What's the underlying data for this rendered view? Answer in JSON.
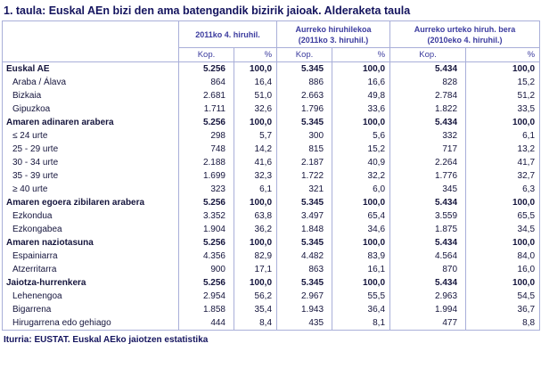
{
  "title": "1. taula: Euskal AEn bizi den ama batengandik bizirik jaioak. Alderaketa taula",
  "footer": "Iturria: EUSTAT. Euskal AEko jaiotzen estatistika",
  "colors": {
    "title_text": "#14145e",
    "header_text": "#3b3b9e",
    "body_text": "#14143c",
    "border": "#a9afd9",
    "background": "#ffffff"
  },
  "chart_data": {
    "type": "table",
    "title": "1. taula: Euskal AEn bizi den ama batengandik bizirik jaioak. Alderaketa taula",
    "source": "Iturria: EUSTAT. Euskal AEko jaiotzen estatistika",
    "column_groups": [
      {
        "lines": [
          "2011ko 4. hiruhil."
        ]
      },
      {
        "lines": [
          "Aurreko hiruhilekoa",
          "(2011ko 3. hiruhil.)"
        ]
      },
      {
        "lines": [
          "Aurreko urteko hiruh. bera",
          "(2010eko 4. hiruhil.)"
        ]
      }
    ],
    "subcolumns": [
      "Kop.",
      "%"
    ],
    "rows": [
      {
        "label": "Euskal AE",
        "section": true,
        "values": [
          "5.256",
          "100,0",
          "5.345",
          "100,0",
          "5.434",
          "100,0"
        ]
      },
      {
        "label": "Araba / Álava",
        "section": false,
        "values": [
          "864",
          "16,4",
          "886",
          "16,6",
          "828",
          "15,2"
        ]
      },
      {
        "label": "Bizkaia",
        "section": false,
        "values": [
          "2.681",
          "51,0",
          "2.663",
          "49,8",
          "2.784",
          "51,2"
        ]
      },
      {
        "label": "Gipuzkoa",
        "section": false,
        "values": [
          "1.711",
          "32,6",
          "1.796",
          "33,6",
          "1.822",
          "33,5"
        ]
      },
      {
        "label": "Amaren adinaren arabera",
        "section": true,
        "values": [
          "5.256",
          "100,0",
          "5.345",
          "100,0",
          "5.434",
          "100,0"
        ]
      },
      {
        "label": "≤ 24 urte",
        "section": false,
        "values": [
          "298",
          "5,7",
          "300",
          "5,6",
          "332",
          "6,1"
        ]
      },
      {
        "label": "25 - 29 urte",
        "section": false,
        "values": [
          "748",
          "14,2",
          "815",
          "15,2",
          "717",
          "13,2"
        ]
      },
      {
        "label": "30 - 34 urte",
        "section": false,
        "values": [
          "2.188",
          "41,6",
          "2.187",
          "40,9",
          "2.264",
          "41,7"
        ]
      },
      {
        "label": "35 - 39 urte",
        "section": false,
        "values": [
          "1.699",
          "32,3",
          "1.722",
          "32,2",
          "1.776",
          "32,7"
        ]
      },
      {
        "label": "≥ 40 urte",
        "section": false,
        "values": [
          "323",
          "6,1",
          "321",
          "6,0",
          "345",
          "6,3"
        ]
      },
      {
        "label": "Amaren egoera zibilaren arabera",
        "section": true,
        "values": [
          "5.256",
          "100,0",
          "5.345",
          "100,0",
          "5.434",
          "100,0"
        ]
      },
      {
        "label": "Ezkondua",
        "section": false,
        "values": [
          "3.352",
          "63,8",
          "3.497",
          "65,4",
          "3.559",
          "65,5"
        ]
      },
      {
        "label": "Ezkongabea",
        "section": false,
        "values": [
          "1.904",
          "36,2",
          "1.848",
          "34,6",
          "1.875",
          "34,5"
        ]
      },
      {
        "label": "Amaren naziotasuna",
        "section": true,
        "values": [
          "5.256",
          "100,0",
          "5.345",
          "100,0",
          "5.434",
          "100,0"
        ]
      },
      {
        "label": "Espainiarra",
        "section": false,
        "values": [
          "4.356",
          "82,9",
          "4.482",
          "83,9",
          "4.564",
          "84,0"
        ]
      },
      {
        "label": "Atzerritarra",
        "section": false,
        "values": [
          "900",
          "17,1",
          "863",
          "16,1",
          "870",
          "16,0"
        ]
      },
      {
        "label": "Jaiotza-hurrenkera",
        "section": true,
        "values": [
          "5.256",
          "100,0",
          "5.345",
          "100,0",
          "5.434",
          "100,0"
        ]
      },
      {
        "label": "Lehenengoa",
        "section": false,
        "values": [
          "2.954",
          "56,2",
          "2.967",
          "55,5",
          "2.963",
          "54,5"
        ]
      },
      {
        "label": "Bigarrena",
        "section": false,
        "values": [
          "1.858",
          "35,4",
          "1.943",
          "36,4",
          "1.994",
          "36,7"
        ]
      },
      {
        "label": "Hirugarrena edo gehiago",
        "section": false,
        "values": [
          "444",
          "8,4",
          "435",
          "8,1",
          "477",
          "8,8"
        ]
      }
    ]
  }
}
